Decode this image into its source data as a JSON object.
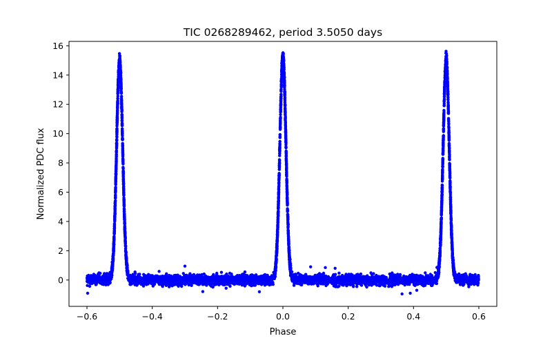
{
  "chart_data": {
    "type": "scatter",
    "title": "TIC 0268289462, period 3.5050 days",
    "xlabel": "Phase",
    "ylabel": "Normalized PDC flux",
    "xlim": [
      -0.655,
      0.655
    ],
    "ylim": [
      -1.8,
      16.3
    ],
    "x_ticks": [
      -0.6,
      -0.4,
      -0.2,
      0.0,
      0.2,
      0.4,
      0.6
    ],
    "x_tick_labels": [
      "−0.6",
      "−0.4",
      "−0.2",
      "0.0",
      "0.2",
      "0.4",
      "0.6"
    ],
    "y_ticks": [
      0,
      2,
      4,
      6,
      8,
      10,
      12,
      14,
      16
    ],
    "y_tick_labels": [
      "0",
      "2",
      "4",
      "6",
      "8",
      "10",
      "12",
      "14",
      "16"
    ],
    "grid": false,
    "legend": "none",
    "marker_color": "#0000ff",
    "series": [
      {
        "peaks": [
          {
            "phase": -0.5,
            "peak_flux": 15.0,
            "fwhm_phase": 0.022
          },
          {
            "phase": 0.0,
            "peak_flux": 15.3,
            "fwhm_phase": 0.022
          },
          {
            "phase": 0.5,
            "peak_flux": 15.0,
            "fwhm_phase": 0.022
          }
        ],
        "baseline_flux": 0.0,
        "scatter_amplitude": 0.3,
        "phase_range": [
          -0.6,
          0.6
        ],
        "x": [
          -0.6,
          -0.59,
          -0.58,
          -0.57,
          -0.55,
          -0.53,
          -0.52,
          -0.51,
          -0.505,
          -0.5,
          -0.495,
          -0.49,
          -0.48,
          -0.47,
          -0.46,
          -0.45,
          -0.4,
          -0.3,
          -0.2,
          -0.1,
          -0.05,
          -0.03,
          -0.02,
          -0.01,
          -0.005,
          0.0,
          0.005,
          0.01,
          0.02,
          0.03,
          0.05,
          0.1,
          0.2,
          0.3,
          0.4,
          0.45,
          0.46,
          0.47,
          0.48,
          0.49,
          0.495,
          0.5,
          0.505,
          0.51,
          0.52,
          0.53,
          0.55,
          0.57,
          0.59,
          0.6
        ],
        "y": [
          0.0,
          -0.1,
          0.1,
          0.0,
          0.0,
          0.2,
          2.0,
          8.0,
          12.0,
          15.0,
          12.0,
          8.0,
          2.0,
          0.2,
          0.0,
          -0.1,
          0.0,
          -0.1,
          -0.1,
          0.0,
          0.1,
          0.3,
          2.5,
          9.0,
          13.0,
          15.3,
          13.0,
          9.0,
          2.5,
          0.3,
          0.1,
          0.2,
          0.0,
          -0.1,
          -0.1,
          -0.1,
          0.0,
          0.2,
          2.0,
          8.0,
          12.0,
          15.0,
          12.0,
          8.0,
          2.0,
          0.2,
          0.0,
          -0.1,
          0.0,
          0.0
        ]
      }
    ],
    "outliers": [
      {
        "x": -0.3,
        "y": 0.95
      },
      {
        "x": -0.072,
        "y": -0.8
      },
      {
        "x": -0.598,
        "y": -0.9
      },
      {
        "x": 0.365,
        "y": -0.95
      },
      {
        "x": 0.39,
        "y": -0.9
      },
      {
        "x": 0.41,
        "y": -0.7
      },
      {
        "x": 0.085,
        "y": 0.9
      },
      {
        "x": 0.13,
        "y": 0.85
      },
      {
        "x": 0.16,
        "y": 0.8
      }
    ]
  }
}
